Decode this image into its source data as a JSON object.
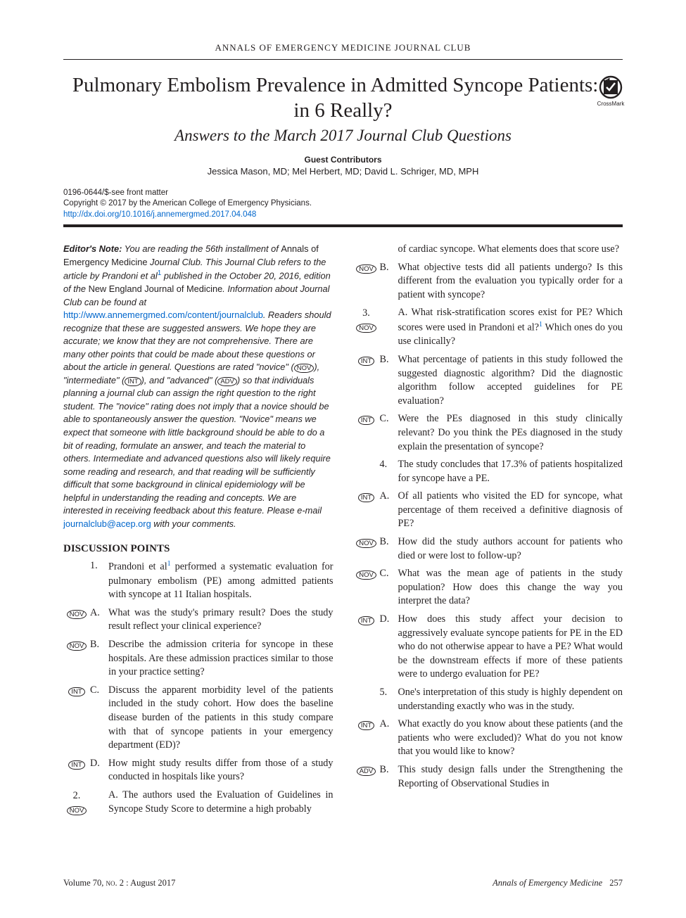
{
  "colors": {
    "text": "#231f20",
    "link": "#0066cc",
    "background": "#ffffff",
    "rule": "#231f20"
  },
  "fonts": {
    "serif": "Georgia, 'Times New Roman', serif",
    "sans": "Arial, Helvetica, sans-serif",
    "title_size_pt": 29,
    "subtitle_size_pt": 23,
    "body_size_pt": 14.2,
    "meta_size_pt": 11.5,
    "ednote_size_pt": 12.8
  },
  "header": {
    "running_head": "ANNALS OF EMERGENCY MEDICINE JOURNAL CLUB"
  },
  "title": {
    "main": "Pulmonary Embolism Prevalence in Admitted Syncope Patients: 1 in 6 Really?",
    "subtitle": "Answers to the March 2017 Journal Club Questions"
  },
  "crossmark": {
    "label": "CrossMark"
  },
  "contributors": {
    "label": "Guest Contributors",
    "names": "Jessica Mason, MD; Mel Herbert, MD; David L. Schriger, MD, MPH"
  },
  "meta": {
    "line1": "0196-0644/$-see front matter",
    "line2": "Copyright © 2017 by the American College of Emergency Physicians.",
    "doi": "http://dx.doi.org/10.1016/j.annemergmed.2017.04.048"
  },
  "editors_note": {
    "lead": "Editor's Note:",
    "part1": " You are reading the 56th installment of ",
    "roman1": "Annals of Emergency Medicine",
    "part2": " Journal Club. This Journal Club refers to the article by Prandoni et al",
    "ref1": "1",
    "part3": " published in the October 20, 2016, edition of the ",
    "roman2": "New England Journal of Medicine",
    "part4": ". Information about Journal Club can be found at ",
    "link": "http://www.annemergmed.com/content/journalclub",
    "part5": ". Readers should recognize that these are suggested answers. We hope they are accurate; we know that they are not comprehensive. There are many other points that could be made about these questions or about the article in general. Questions are rated \"novice\" (",
    "tag_nov": "NOV",
    "part6": "), \"intermediate\" (",
    "tag_int": "INT",
    "part7": "), and \"advanced\" (",
    "tag_adv": "ADV",
    "part8": ") so that individuals planning a journal club can assign the right question to the right student. The \"novice\" rating does not imply that a novice should be able to spontaneously answer the question. \"Novice\" means we expect that someone with little background should be able to do a bit of reading, formulate an answer, and teach the material to others. Intermediate and advanced questions also will likely require some reading and research, and that reading will be sufficiently difficult that some background in clinical epidemiology will be helpful in understanding the reading and concepts. We are interested in receiving feedback about this feature. Please e-mail ",
    "email": "journalclub@acep.org",
    "part9": " with your comments."
  },
  "section_head": "DISCUSSION POINTS",
  "q_left": [
    {
      "tag": "",
      "marker": "1.",
      "text": "Prandoni et al|REF1| performed a systematic evaluation for pulmonary embolism (PE) among admitted patients with syncope at 11 Italian hospitals."
    },
    {
      "tag": "NOV",
      "marker": "A.",
      "text": "What was the study's primary result? Does the study result reflect your clinical experience?"
    },
    {
      "tag": "NOV",
      "marker": "B.",
      "text": "Describe the admission criteria for syncope in these hospitals. Are these admission practices similar to those in your practice setting?"
    },
    {
      "tag": "INT",
      "marker": "C.",
      "text": "Discuss the apparent morbidity level of the patients included in the study cohort. How does the baseline disease burden of the patients in this study compare with that of syncope patients in your emergency department (ED)?"
    },
    {
      "tag": "INT",
      "marker": "D.",
      "text": "How might study results differ from those of a study conducted in hospitals like yours?"
    },
    {
      "tag": "NOV",
      "marker": "2.",
      "text": "A. The authors used the Evaluation of Guidelines in Syncope Study Score to determine a high probably",
      "stacked": true
    }
  ],
  "q_right": [
    {
      "tag": "",
      "marker": "",
      "text": "of cardiac syncope. What elements does that score use?"
    },
    {
      "tag": "NOV",
      "marker": "B.",
      "text": "What objective tests did all patients undergo? Is this different from the evaluation you typically order for a patient with syncope?"
    },
    {
      "tag": "NOV",
      "marker": "3.",
      "text": "A. What risk-stratification scores exist for PE? Which scores were used in Prandoni et al?|REF1| Which ones do you use clinically?",
      "stacked": true
    },
    {
      "tag": "INT",
      "marker": "B.",
      "text": "What percentage of patients in this study followed the suggested diagnostic algorithm? Did the diagnostic algorithm follow accepted guidelines for PE evaluation?"
    },
    {
      "tag": "INT",
      "marker": "C.",
      "text": "Were the PEs diagnosed in this study clinically relevant? Do you think the PEs diagnosed in the study explain the presentation of syncope?"
    },
    {
      "tag": "",
      "marker": "4.",
      "text": "The study concludes that 17.3% of patients hospitalized for syncope have a PE."
    },
    {
      "tag": "INT",
      "marker": "A.",
      "text": "Of all patients who visited the ED for syncope, what percentage of them received a definitive diagnosis of PE?"
    },
    {
      "tag": "NOV",
      "marker": "B.",
      "text": "How did the study authors account for patients who died or were lost to follow-up?"
    },
    {
      "tag": "NOV",
      "marker": "C.",
      "text": "What was the mean age of patients in the study population? How does this change the way you interpret the data?"
    },
    {
      "tag": "INT",
      "marker": "D.",
      "text": "How does this study affect your decision to aggressively evaluate syncope patients for PE in the ED who do not otherwise appear to have a PE? What would be the downstream effects if more of these patients were to undergo evaluation for PE?"
    },
    {
      "tag": "",
      "marker": "5.",
      "text": "One's interpretation of this study is highly dependent on understanding exactly who was in the study."
    },
    {
      "tag": "INT",
      "marker": "A.",
      "text": "What exactly do you know about these patients (and the patients who were excluded)? What do you not know that you would like to know?"
    },
    {
      "tag": "ADV",
      "marker": "B.",
      "text": "This study design falls under the Strengthening the Reporting of Observational Studies in"
    }
  ],
  "footer": {
    "left_vol": "Volume 70, ",
    "left_no": "no. 2",
    "left_date": " : August 2017",
    "right_journal": "Annals of Emergency Medicine",
    "right_page": "257"
  }
}
